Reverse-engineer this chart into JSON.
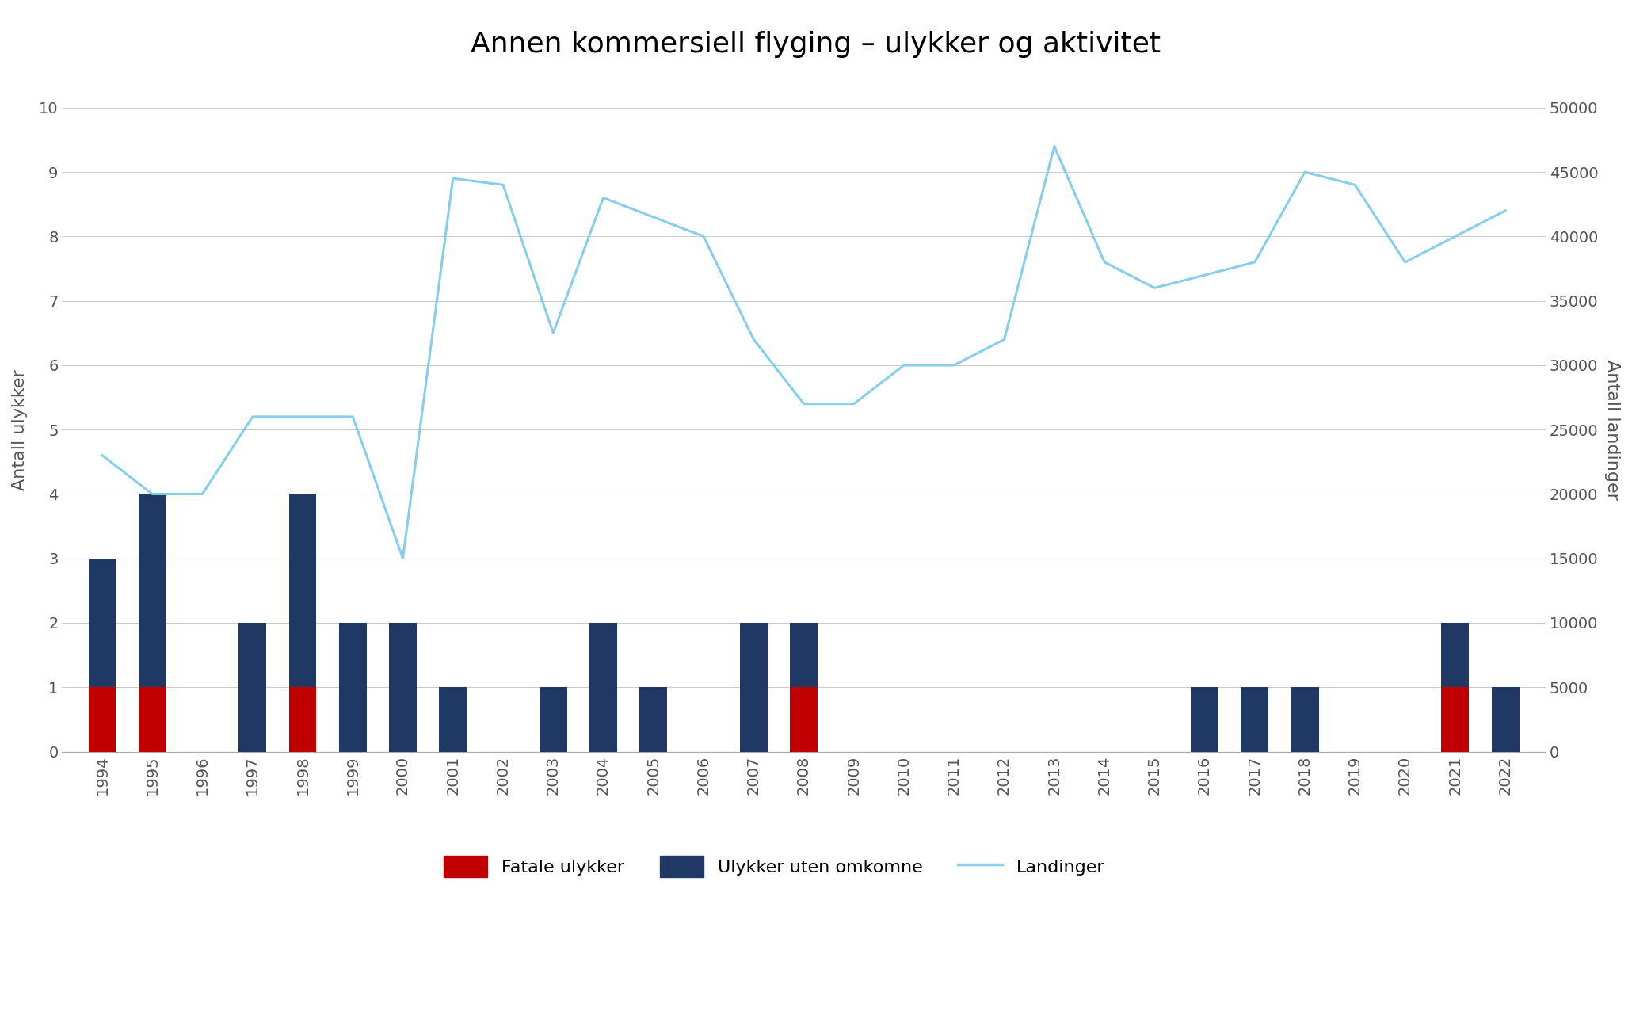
{
  "years": [
    1994,
    1995,
    1996,
    1997,
    1998,
    1999,
    2000,
    2001,
    2002,
    2003,
    2004,
    2005,
    2006,
    2007,
    2008,
    2009,
    2010,
    2011,
    2012,
    2013,
    2014,
    2015,
    2016,
    2017,
    2018,
    2019,
    2020,
    2021,
    2022
  ],
  "fatal": [
    1,
    1,
    0,
    0,
    1,
    0,
    0,
    0,
    0,
    0,
    0,
    0,
    0,
    0,
    1,
    0,
    0,
    0,
    0,
    0,
    0,
    0,
    0,
    0,
    0,
    0,
    0,
    1,
    0
  ],
  "nonfatal": [
    2,
    3,
    0,
    2,
    3,
    2,
    2,
    1,
    0,
    1,
    2,
    1,
    0,
    2,
    1,
    0,
    0,
    0,
    0,
    0,
    0,
    0,
    1,
    1,
    1,
    0,
    0,
    1,
    1
  ],
  "landings": [
    23000,
    20000,
    20000,
    26000,
    26000,
    26000,
    15000,
    44500,
    44000,
    32500,
    43000,
    41500,
    40000,
    32000,
    27000,
    27000,
    30000,
    30000,
    32000,
    47000,
    38000,
    36000,
    37000,
    38000,
    45000,
    44000,
    38000,
    40000,
    42000
  ],
  "title": "Annen kommersiell flyging – ulykker og aktivitet",
  "ylabel_left": "Antall ulykker",
  "ylabel_right": "Antall landinger",
  "ylim_left": [
    0,
    10
  ],
  "ylim_right": [
    0,
    50000
  ],
  "yticks_left": [
    0,
    1,
    2,
    3,
    4,
    5,
    6,
    7,
    8,
    9,
    10
  ],
  "yticks_right": [
    0,
    5000,
    10000,
    15000,
    20000,
    25000,
    30000,
    35000,
    40000,
    45000,
    50000
  ],
  "color_fatal": "#c00000",
  "color_nonfatal": "#1f3864",
  "color_landing": "#87ceeb",
  "background_color": "#ffffff",
  "legend_fatal": "Fatale ulykker",
  "legend_nonfatal": "Ulykker uten omkomne",
  "legend_landing": "Landinger",
  "title_fontsize": 26,
  "axis_label_fontsize": 16,
  "tick_fontsize": 14,
  "legend_fontsize": 16
}
